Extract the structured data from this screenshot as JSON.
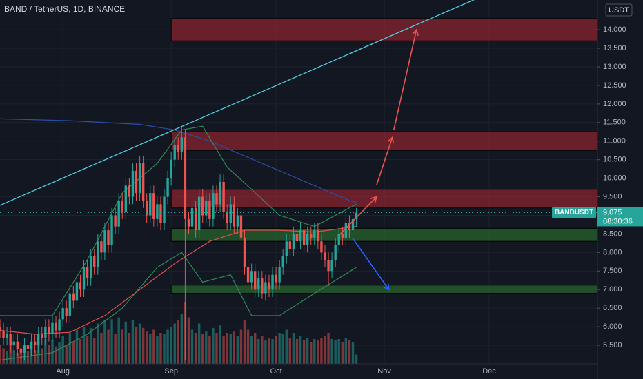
{
  "chart_data": {
    "type": "candlestick",
    "title": "BAND / TetherUS, 1D, BINANCE",
    "currency": "USDT",
    "symbol": "BANDUSDT",
    "countdown": "08:30:36",
    "up_color": "#26a69a",
    "down_color": "#ef5350",
    "open": [
      6.0,
      5.9,
      5.7,
      5.8,
      5.5,
      5.6,
      5.4,
      5.3,
      5.5,
      5.4,
      5.6,
      5.5,
      5.8,
      5.7,
      6.0,
      5.8,
      6.1,
      5.9,
      6.2,
      6.5,
      6.3,
      6.9,
      6.7,
      7.2,
      7.0,
      7.6,
      7.3,
      7.9,
      7.6,
      8.3,
      8.0,
      8.6,
      8.2,
      9.0,
      8.7,
      9.4,
      9.1,
      9.8,
      9.5,
      10.2,
      9.6,
      10.4,
      9.4,
      9.0,
      9.6,
      8.9,
      9.3,
      8.8,
      9.5,
      10.0,
      10.5,
      10.9,
      10.7,
      11.1,
      8.9,
      8.7,
      9.2,
      8.6,
      9.5,
      9.0,
      9.4,
      8.9,
      9.6,
      9.3,
      9.9,
      9.1,
      8.8,
      9.3,
      8.7,
      9.0,
      8.4,
      7.6,
      7.2,
      7.5,
      7.0,
      7.3,
      6.9,
      7.2,
      7.0,
      7.4,
      7.2,
      7.6,
      7.9,
      8.3,
      8.1,
      8.5,
      8.3,
      8.6,
      8.2,
      8.5,
      8.4,
      8.6,
      8.3,
      8.0,
      7.8,
      7.5,
      7.8,
      8.2,
      8.5,
      8.4,
      8.8,
      8.6,
      8.9
    ],
    "high": [
      6.2,
      6.1,
      6.0,
      6.0,
      5.8,
      5.8,
      5.6,
      5.7,
      5.7,
      5.8,
      5.8,
      6.0,
      6.0,
      6.2,
      6.2,
      6.3,
      6.3,
      6.4,
      6.7,
      6.7,
      7.1,
      7.1,
      7.4,
      7.4,
      7.8,
      7.8,
      8.1,
      8.1,
      8.5,
      8.5,
      8.8,
      8.8,
      9.2,
      9.2,
      9.6,
      9.6,
      10.0,
      10.0,
      10.4,
      10.4,
      10.6,
      10.6,
      9.6,
      9.8,
      9.8,
      9.5,
      9.5,
      9.7,
      10.2,
      10.7,
      11.1,
      11.1,
      11.4,
      11.3,
      9.1,
      9.4,
      9.4,
      9.7,
      9.7,
      9.6,
      9.6,
      9.8,
      9.8,
      10.1,
      10.1,
      9.3,
      9.5,
      9.5,
      9.2,
      9.2,
      8.6,
      7.8,
      7.7,
      7.7,
      7.5,
      7.5,
      7.4,
      7.4,
      7.6,
      7.6,
      7.8,
      8.1,
      8.5,
      8.5,
      8.7,
      8.7,
      8.8,
      8.8,
      8.7,
      8.7,
      8.8,
      8.8,
      8.5,
      8.2,
      8.0,
      8.0,
      8.4,
      8.7,
      8.7,
      9.0,
      9.0,
      9.1,
      9.2
    ],
    "low": [
      5.7,
      5.5,
      5.5,
      5.3,
      5.3,
      5.2,
      5.1,
      5.1,
      5.2,
      5.2,
      5.3,
      5.3,
      5.5,
      5.5,
      5.6,
      5.6,
      5.7,
      5.7,
      6.0,
      6.1,
      6.1,
      6.5,
      6.5,
      6.8,
      6.8,
      7.1,
      7.1,
      7.4,
      7.4,
      7.8,
      7.8,
      8.0,
      8.0,
      8.5,
      8.5,
      8.9,
      8.9,
      9.3,
      9.3,
      9.4,
      9.4,
      9.2,
      8.8,
      8.8,
      8.7,
      8.7,
      8.6,
      8.6,
      9.3,
      9.8,
      10.3,
      10.5,
      10.5,
      5.1,
      8.5,
      8.5,
      8.4,
      8.4,
      8.8,
      8.8,
      8.7,
      8.7,
      9.1,
      9.1,
      8.9,
      8.6,
      8.6,
      8.5,
      8.5,
      8.2,
      7.4,
      7.0,
      7.0,
      6.8,
      6.8,
      6.75,
      6.7,
      6.8,
      6.8,
      7.0,
      7.0,
      7.4,
      7.7,
      7.9,
      7.9,
      8.1,
      8.1,
      8.0,
      8.0,
      8.2,
      8.2,
      8.1,
      7.8,
      7.6,
      7.1,
      7.3,
      7.6,
      8.0,
      8.2,
      8.2,
      8.4,
      8.4,
      8.7
    ],
    "close": [
      5.9,
      5.7,
      5.8,
      5.5,
      5.6,
      5.4,
      5.3,
      5.5,
      5.4,
      5.6,
      5.5,
      5.8,
      5.7,
      6.0,
      5.8,
      6.1,
      5.9,
      6.2,
      6.5,
      6.3,
      6.9,
      6.7,
      7.2,
      7.0,
      7.6,
      7.3,
      7.9,
      7.6,
      8.3,
      8.0,
      8.6,
      8.2,
      9.0,
      8.7,
      9.4,
      9.1,
      9.8,
      9.5,
      10.2,
      9.6,
      10.4,
      9.4,
      9.0,
      9.6,
      8.9,
      9.3,
      8.8,
      9.5,
      10.0,
      10.5,
      10.9,
      10.7,
      11.1,
      8.9,
      8.7,
      9.2,
      8.6,
      9.5,
      9.0,
      9.4,
      8.9,
      9.6,
      9.3,
      9.9,
      9.1,
      8.8,
      9.3,
      8.7,
      9.0,
      8.4,
      7.6,
      7.2,
      7.5,
      7.0,
      7.3,
      6.9,
      7.2,
      7.0,
      7.4,
      7.2,
      7.6,
      7.9,
      8.3,
      8.1,
      8.5,
      8.3,
      8.6,
      8.2,
      8.5,
      8.4,
      8.6,
      8.3,
      8.0,
      7.8,
      7.5,
      7.8,
      8.2,
      8.5,
      8.4,
      8.8,
      8.6,
      8.9,
      9.075
    ],
    "volume": [
      30,
      25,
      20,
      35,
      22,
      18,
      25,
      30,
      20,
      28,
      22,
      35,
      25,
      40,
      30,
      38,
      28,
      35,
      45,
      30,
      50,
      35,
      55,
      40,
      60,
      45,
      58,
      42,
      65,
      50,
      70,
      55,
      72,
      48,
      75,
      55,
      68,
      50,
      70,
      60,
      65,
      58,
      52,
      48,
      55,
      45,
      50,
      48,
      55,
      60,
      65,
      70,
      80,
      100,
      75,
      55,
      50,
      65,
      48,
      52,
      45,
      58,
      50,
      62,
      45,
      50,
      48,
      52,
      45,
      55,
      70,
      55,
      45,
      50,
      40,
      45,
      38,
      42,
      40,
      45,
      50,
      48,
      55,
      42,
      50,
      40,
      45,
      38,
      42,
      35,
      40,
      38,
      42,
      45,
      50,
      40,
      38,
      40,
      35,
      42,
      38,
      35,
      15
    ],
    "xlim": [
      0,
      171
    ],
    "ylim": [
      5.0,
      14.8
    ],
    "xticks": [
      {
        "value": 18,
        "label": "Aug"
      },
      {
        "value": 49,
        "label": "Sep"
      },
      {
        "value": 79,
        "label": "Oct"
      },
      {
        "value": 110,
        "label": "Nov"
      },
      {
        "value": 140,
        "label": "Dec"
      }
    ],
    "yticks": [
      {
        "value": 5.5,
        "label": "5.500"
      },
      {
        "value": 6.0,
        "label": "6.000"
      },
      {
        "value": 6.5,
        "label": "6.500"
      },
      {
        "value": 7.0,
        "label": "7.000"
      },
      {
        "value": 7.5,
        "label": "7.500"
      },
      {
        "value": 8.0,
        "label": "8.000"
      },
      {
        "value": 8.5,
        "label": "8.500"
      },
      {
        "value": 9.0,
        "label": "9.000"
      },
      {
        "value": 9.5,
        "label": "9.500"
      },
      {
        "value": 10.0,
        "label": "10.000"
      },
      {
        "value": 10.5,
        "label": "10.500"
      },
      {
        "value": 11.0,
        "label": "11.000"
      },
      {
        "value": 11.5,
        "label": "11.500"
      },
      {
        "value": 12.0,
        "label": "12.000"
      },
      {
        "value": 12.5,
        "label": "12.500"
      },
      {
        "value": 13.0,
        "label": "13.000"
      },
      {
        "value": 13.5,
        "label": "13.500"
      },
      {
        "value": 14.0,
        "label": "14.000"
      }
    ],
    "zone_start": 49,
    "zones": [
      {
        "low": 13.7,
        "high": 14.3,
        "color": "#b22833"
      },
      {
        "low": 10.75,
        "high": 11.25,
        "color": "#b22833"
      },
      {
        "low": 9.2,
        "high": 9.7,
        "color": "#b22833"
      },
      {
        "low": 8.3,
        "high": 8.65,
        "color": "#2e7d32"
      },
      {
        "low": 6.9,
        "high": 7.12,
        "color": "#2e7d32"
      }
    ],
    "lines": [
      {
        "color": "#2a4ea8",
        "points": [
          [
            0,
            11.6
          ],
          [
            20,
            11.55
          ],
          [
            40,
            11.45
          ],
          [
            50,
            11.3
          ],
          [
            60,
            11.0
          ],
          [
            70,
            10.6
          ],
          [
            80,
            10.2
          ],
          [
            90,
            9.8
          ],
          [
            100,
            9.4
          ],
          [
            102,
            9.35
          ]
        ]
      },
      {
        "color": "#e0504a",
        "points": [
          [
            0,
            5.9
          ],
          [
            10,
            5.8
          ],
          [
            20,
            5.85
          ],
          [
            30,
            6.3
          ],
          [
            40,
            7.0
          ],
          [
            50,
            7.7
          ],
          [
            60,
            8.3
          ],
          [
            70,
            8.6
          ],
          [
            80,
            8.6
          ],
          [
            90,
            8.55
          ],
          [
            102,
            8.7
          ]
        ]
      },
      {
        "color": "#2e8b57",
        "points": [
          [
            0,
            6.3
          ],
          [
            15,
            6.3
          ],
          [
            25,
            7.8
          ],
          [
            35,
            9.6
          ],
          [
            45,
            10.4
          ],
          [
            52,
            11.3
          ],
          [
            58,
            11.4
          ],
          [
            65,
            10.3
          ],
          [
            72,
            9.7
          ],
          [
            80,
            9.0
          ],
          [
            90,
            8.7
          ],
          [
            102,
            9.3
          ]
        ]
      },
      {
        "color": "#2e8b57",
        "points": [
          [
            0,
            5.1
          ],
          [
            15,
            5.3
          ],
          [
            25,
            5.8
          ],
          [
            35,
            6.5
          ],
          [
            45,
            7.6
          ],
          [
            52,
            8.0
          ],
          [
            58,
            7.2
          ],
          [
            66,
            7.4
          ],
          [
            72,
            6.3
          ],
          [
            80,
            6.3
          ],
          [
            90,
            6.9
          ],
          [
            102,
            7.6
          ]
        ]
      }
    ],
    "trendline": {
      "color": "#4dd0e1",
      "from": [
        0,
        9.27
      ],
      "to": [
        136,
        14.82
      ]
    },
    "arrows": [
      {
        "color": "#f0534f",
        "from": [
          96.9,
          8.45
        ],
        "to": [
          107.8,
          9.5
        ]
      },
      {
        "color": "#f0534f",
        "from": [
          107.8,
          9.82
        ],
        "to": [
          112.3,
          11.1
        ]
      },
      {
        "color": "#f0534f",
        "from": [
          112.7,
          11.3
        ],
        "to": [
          119.2,
          14.0
        ]
      },
      {
        "color": "#2962ff",
        "from": [
          100.8,
          8.4
        ],
        "to": [
          111.3,
          7.0
        ]
      }
    ]
  }
}
